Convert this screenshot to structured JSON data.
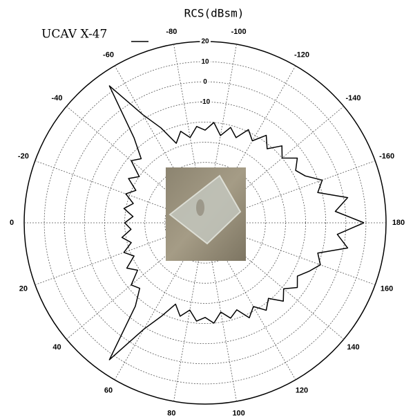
{
  "chart_data": {
    "type": "polar_line",
    "title": "RCS(dBsm)",
    "series": [
      {
        "name": "UCAV X-47",
        "color": "#000000",
        "x": [
          -180,
          -175,
          -170,
          -165,
          -160,
          -155,
          -150,
          -145,
          -140,
          -135,
          -130,
          -125,
          -120,
          -115,
          -110,
          -105,
          -100,
          -95,
          -90,
          -85,
          -80,
          -75,
          -70,
          -65,
          -60,
          -55,
          -50,
          -45,
          -40,
          -35,
          -30,
          -25,
          -20,
          -15,
          -10,
          -5,
          0,
          5,
          10,
          15,
          20,
          25,
          30,
          35,
          40,
          45,
          50,
          55,
          60,
          65,
          70,
          75,
          80,
          85,
          90,
          95,
          100,
          105,
          110,
          115,
          120,
          125,
          130,
          135,
          140,
          145,
          150,
          155,
          160,
          165,
          170,
          175,
          180
        ],
        "values": [
          9,
          -5,
          2,
          -12,
          -8,
          -15,
          -18,
          -14,
          -20,
          -16,
          -22,
          -17,
          -23,
          -19,
          -25,
          -21,
          -26,
          -20,
          -24,
          -22,
          -27,
          -23,
          -28,
          -18,
          -8,
          13,
          -15,
          -25,
          -22,
          -30,
          -26,
          -32,
          -28,
          -33,
          -29,
          -34,
          -30,
          -33,
          -28,
          -32,
          -27,
          -31,
          -25,
          -29,
          -22,
          -24,
          -16,
          13,
          -9,
          -19,
          -27,
          -22,
          -26,
          -21,
          -23,
          -20,
          -25,
          -21,
          -24,
          -18,
          -22,
          -17,
          -21,
          -15,
          -19,
          -14,
          -17,
          -13,
          -9,
          -12,
          2,
          -4,
          9
        ]
      }
    ],
    "rlim": [
      -70,
      20
    ],
    "rticks": [
      20,
      10,
      0,
      -10
    ],
    "rgrid": [
      -20,
      -30,
      -40,
      -50,
      -60
    ],
    "thetaticks": [
      -160,
      -140,
      -120,
      -100,
      -80,
      -60,
      -40,
      -20,
      0,
      20,
      40,
      60,
      80,
      100,
      120,
      140,
      160,
      180
    ],
    "grid": true
  }
}
